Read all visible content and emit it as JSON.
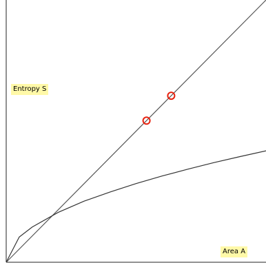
{
  "chart_data": {
    "type": "line",
    "xlabel": "Area A",
    "ylabel": "Entropy S",
    "xlim": [
      0,
      1
    ],
    "ylim": [
      0,
      1
    ],
    "grid": false,
    "series": [
      {
        "color": "#555555",
        "x": [
          0,
          1
        ],
        "y": [
          0,
          1
        ]
      },
      {
        "color": "#333333",
        "x": [
          0,
          0.05,
          0.1,
          0.2,
          0.3,
          0.4,
          0.5,
          0.6,
          0.7,
          0.8,
          0.9,
          1.0
        ],
        "y": [
          0,
          0.096,
          0.134,
          0.19,
          0.233,
          0.268,
          0.3,
          0.329,
          0.355,
          0.38,
          0.403,
          0.425
        ]
      }
    ],
    "markers": {
      "color": "#e8220f",
      "x": [
        0.54,
        0.635
      ],
      "y": [
        0.54,
        0.635
      ]
    }
  }
}
